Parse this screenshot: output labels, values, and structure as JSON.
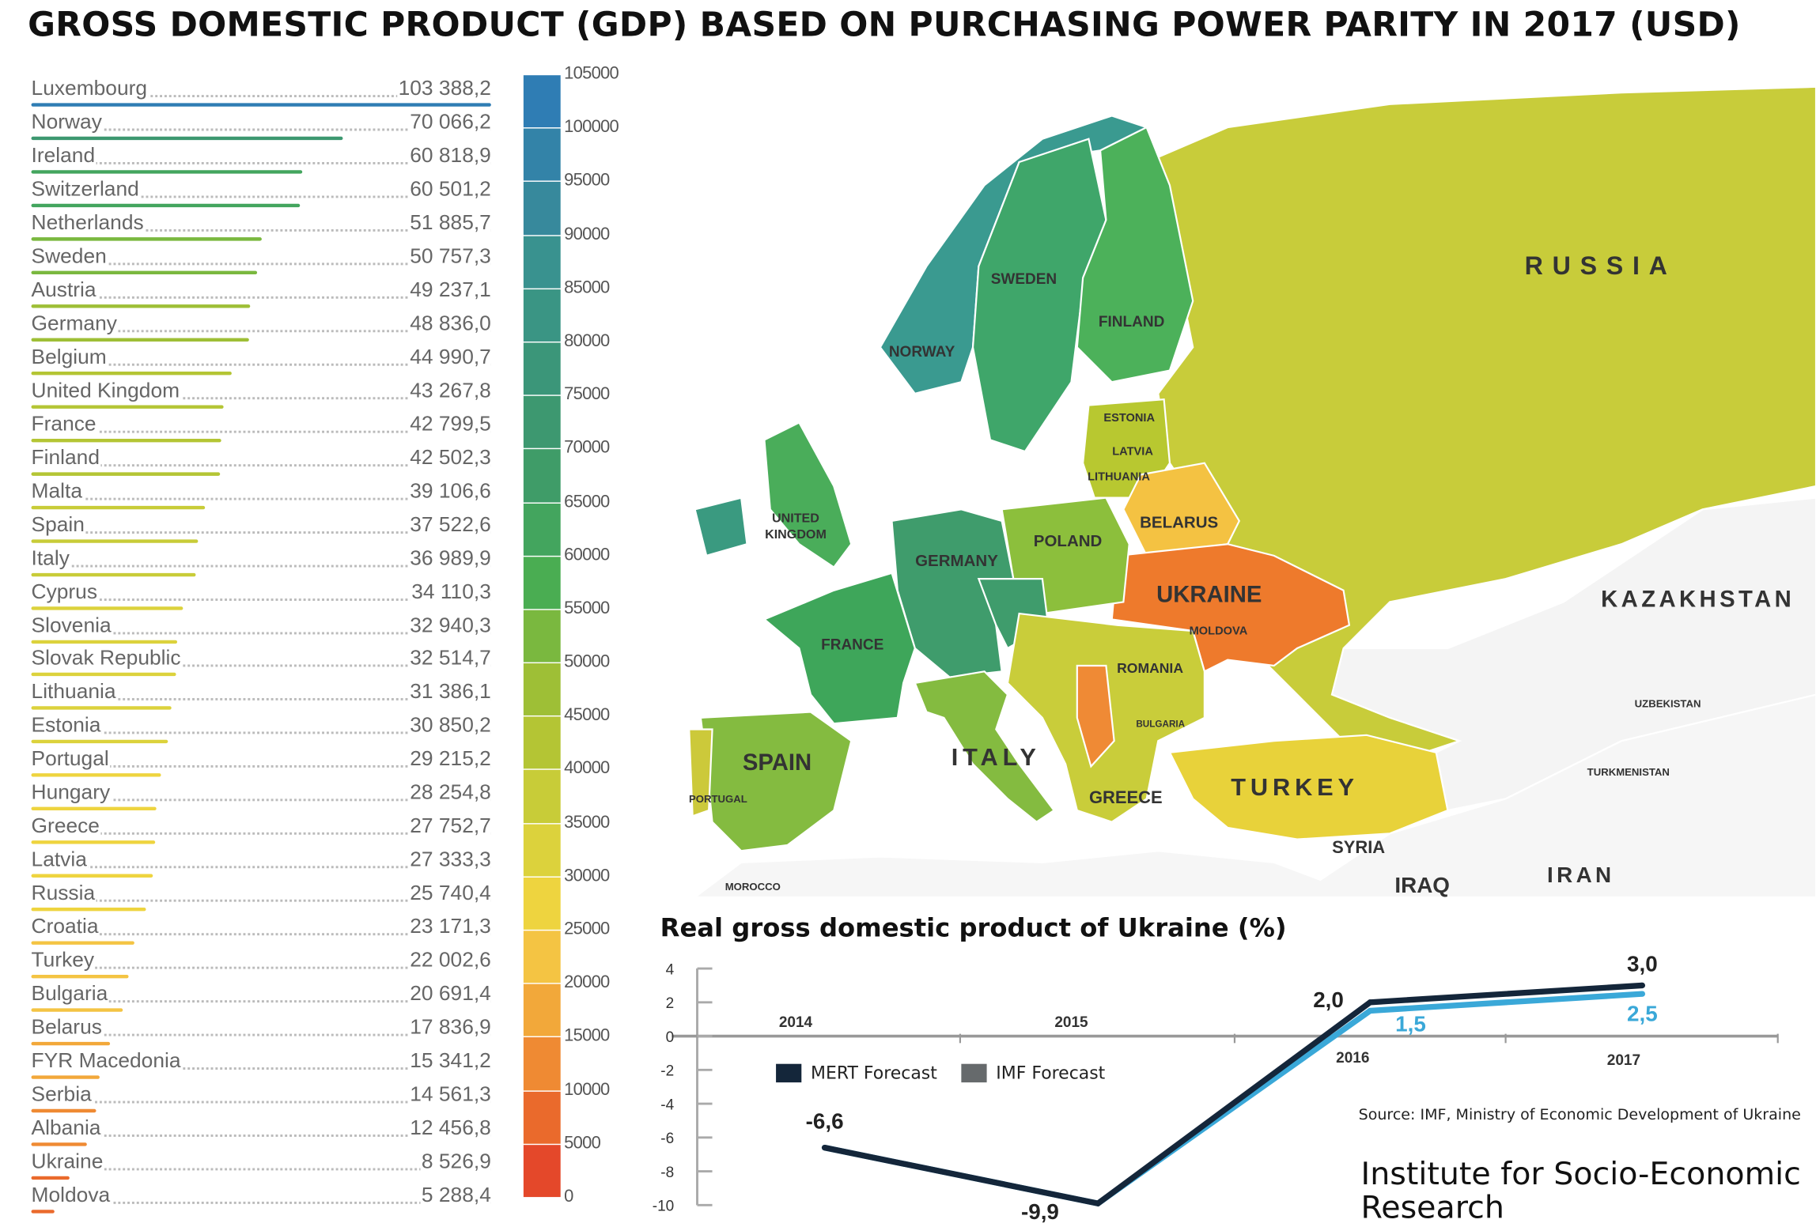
{
  "title": "GROSS DOMESTIC PRODUCT (GDP) BASED ON PURCHASING POWER PARITY IN 2017 (USD)",
  "ranking": [
    {
      "country": "Luxembourg",
      "value": 103388.2,
      "label": "103 388,2"
    },
    {
      "country": "Norway",
      "value": 70066.2,
      "label": "70 066,2"
    },
    {
      "country": "Ireland",
      "value": 60818.9,
      "label": "60 818,9"
    },
    {
      "country": "Switzerland",
      "value": 60501.2,
      "label": "60 501,2"
    },
    {
      "country": "Netherlands",
      "value": 51885.7,
      "label": "51 885,7"
    },
    {
      "country": "Sweden",
      "value": 50757.3,
      "label": "50 757,3"
    },
    {
      "country": "Austria",
      "value": 49237.1,
      "label": "49 237,1"
    },
    {
      "country": "Germany",
      "value": 48836.0,
      "label": "48 836,0"
    },
    {
      "country": "Belgium",
      "value": 44990.7,
      "label": "44 990,7"
    },
    {
      "country": "United Kingdom",
      "value": 43267.8,
      "label": "43 267,8"
    },
    {
      "country": "France",
      "value": 42799.5,
      "label": "42 799,5"
    },
    {
      "country": "Finland",
      "value": 42502.3,
      "label": "42 502,3"
    },
    {
      "country": "Malta",
      "value": 39106.6,
      "label": "39 106,6"
    },
    {
      "country": "Spain",
      "value": 37522.6,
      "label": "37 522,6"
    },
    {
      "country": "Italy",
      "value": 36989.9,
      "label": "36 989,9"
    },
    {
      "country": "Cyprus",
      "value": 34110.3,
      "label": "34 110,3"
    },
    {
      "country": "Slovenia",
      "value": 32940.3,
      "label": "32 940,3"
    },
    {
      "country": "Slovak Republic",
      "value": 32514.7,
      "label": "32 514,7"
    },
    {
      "country": "Lithuania",
      "value": 31386.1,
      "label": "31 386,1"
    },
    {
      "country": "Estonia",
      "value": 30850.2,
      "label": "30 850,2"
    },
    {
      "country": "Portugal",
      "value": 29215.2,
      "label": "29 215,2"
    },
    {
      "country": "Hungary",
      "value": 28254.8,
      "label": "28 254,8"
    },
    {
      "country": "Greece",
      "value": 27752.7,
      "label": "27 752,7"
    },
    {
      "country": "Latvia",
      "value": 27333.3,
      "label": "27 333,3"
    },
    {
      "country": "Russia",
      "value": 25740.4,
      "label": "25 740,4"
    },
    {
      "country": "Croatia",
      "value": 23171.3,
      "label": "23 171,3"
    },
    {
      "country": "Turkey",
      "value": 22002.6,
      "label": "22 002,6"
    },
    {
      "country": "Bulgaria",
      "value": 20691.4,
      "label": "20 691,4"
    },
    {
      "country": "Belarus",
      "value": 17836.9,
      "label": "17 836,9"
    },
    {
      "country": "FYR Macedonia",
      "value": 15341.2,
      "label": "15 341,2"
    },
    {
      "country": "Serbia",
      "value": 14561.3,
      "label": "14 561,3"
    },
    {
      "country": "Albania",
      "value": 12456.8,
      "label": "12 456,8"
    },
    {
      "country": "Ukraine",
      "value": 8526.9,
      "label": "8 526,9"
    },
    {
      "country": "Moldova",
      "value": 5288.4,
      "label": "5 288,4"
    }
  ],
  "colorbar": {
    "min": 0,
    "max": 105000,
    "ticks": [
      "105000",
      "100000",
      "95000",
      "90000",
      "85000",
      "80000",
      "75000",
      "70000",
      "65000",
      "60000",
      "55000",
      "50000",
      "45000",
      "40000",
      "35000",
      "30000",
      "25000",
      "20000",
      "15000",
      "10000",
      "5000",
      "0"
    ],
    "colors": [
      "#e4482a",
      "#ea6a2c",
      "#ef8a33",
      "#f2a83a",
      "#f4c443",
      "#eed43f",
      "#dcd23c",
      "#c8cc38",
      "#b4c534",
      "#9ebf36",
      "#7ab83f",
      "#4aad52",
      "#43a55e",
      "#3f9c68",
      "#3d9870",
      "#3b9679",
      "#3a9584",
      "#39928f",
      "#37899c",
      "#3383a8",
      "#2f7db4"
    ]
  },
  "map": {
    "labels": [
      "RUSSIA",
      "KAZAKHSTAN",
      "SWEDEN",
      "FINLAND",
      "NORWAY",
      "ESTONIA",
      "LATVIA",
      "LITHUANIA",
      "BELARUS",
      "POLAND",
      "UKRAINE",
      "MOLDOVA",
      "GERMANY",
      "UNITED",
      "KINGDOM",
      "FRANCE",
      "ROMANIA",
      "SPAIN",
      "PORTUGAL",
      "ITALY",
      "GREECE",
      "TURKEY",
      "SYRIA",
      "IRAQ",
      "IRAN",
      "UZBEKISTAN",
      "TURKMENISTAN",
      "MOROCCO",
      "BULGARIA"
    ]
  },
  "chart_data": {
    "type": "line",
    "title": "Real gross domestic product of Ukraine (%)",
    "x": [
      "2014",
      "2015",
      "2016",
      "2017"
    ],
    "ylim": [
      -10,
      4
    ],
    "yticks": [
      "4",
      "2",
      "0",
      "-2",
      "-4",
      "-6",
      "-8",
      "-10"
    ],
    "series": [
      {
        "name": "MERT Forecast",
        "color": "#14263a",
        "values": [
          -6.6,
          -9.9,
          2.0,
          3.0
        ],
        "labels": [
          "-6,6",
          "-9,9",
          "2,0",
          "3,0"
        ]
      },
      {
        "name": "IMF Forecast",
        "color": "#3aa8d8",
        "values": [
          -6.6,
          -9.9,
          1.5,
          2.5
        ],
        "labels": [
          "",
          "",
          "1,5",
          "2,5"
        ]
      }
    ],
    "legend_swatches": [
      "#14263a",
      "#666a6c"
    ]
  },
  "source": "Source: IMF, Ministry of Economic Development of Ukraine",
  "institute": "Institute for Socio-Economic Research"
}
